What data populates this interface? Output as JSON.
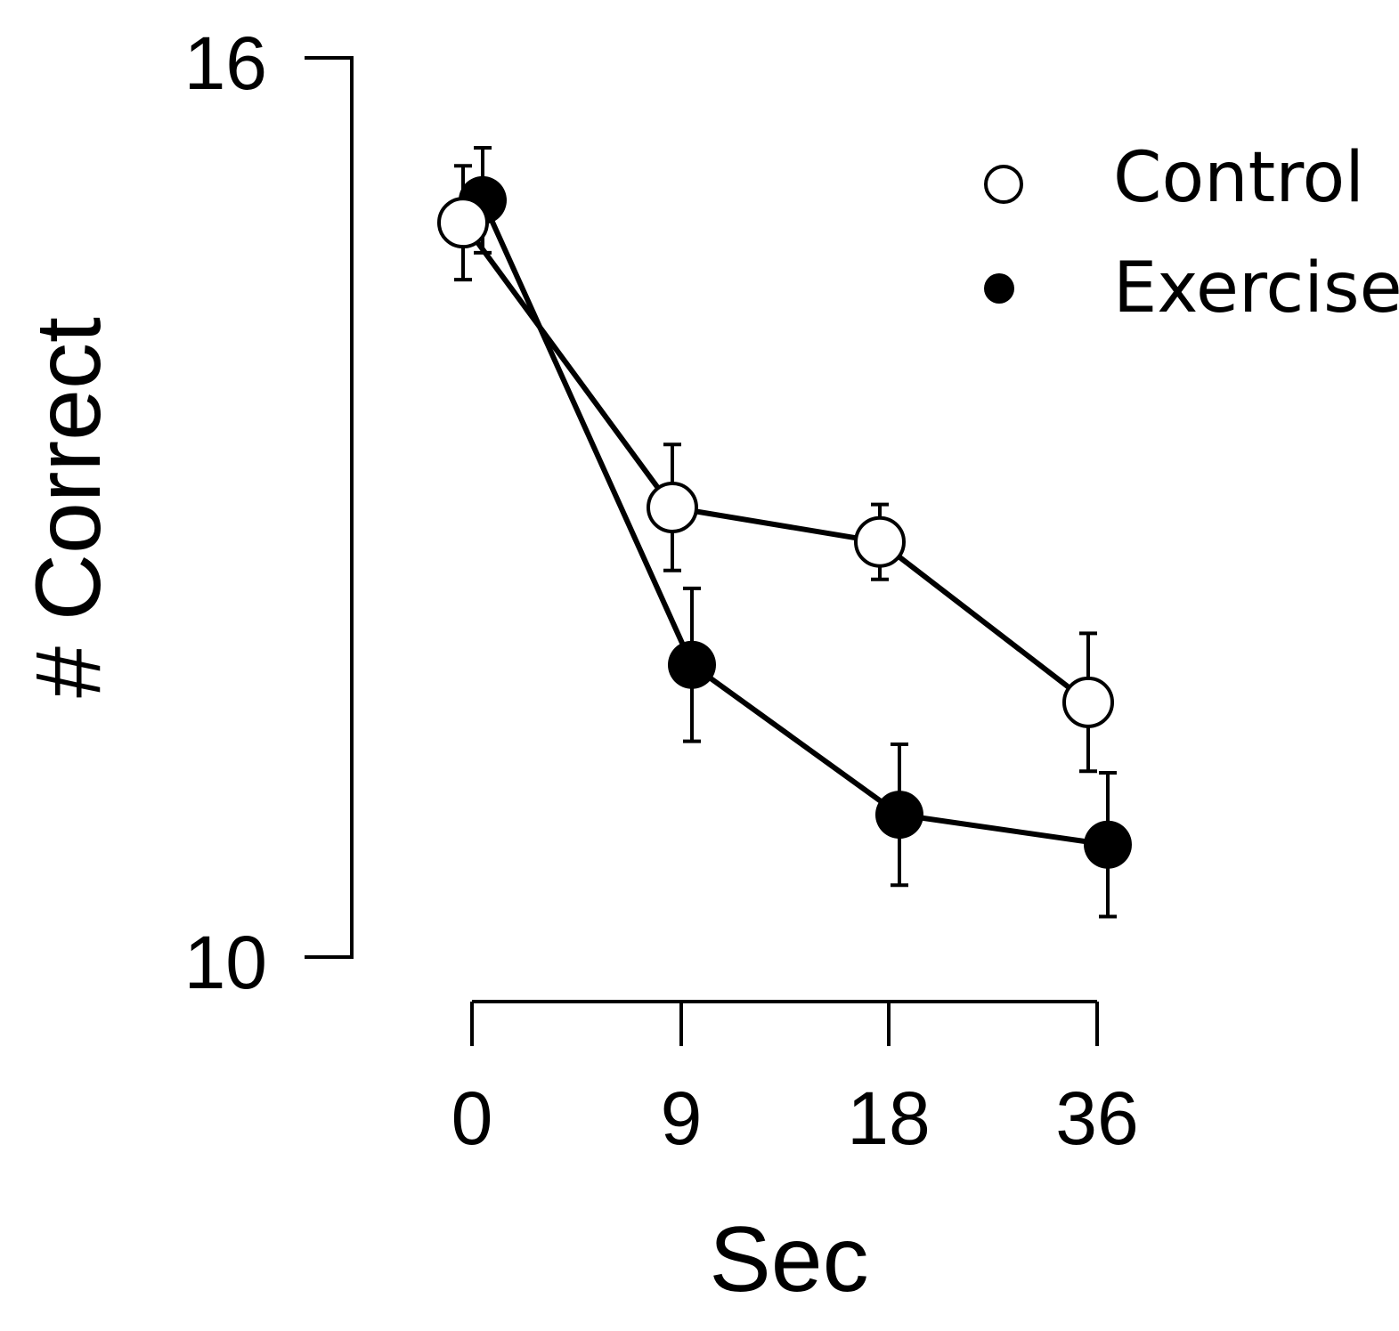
{
  "chart_data": {
    "type": "line",
    "title": "",
    "xlabel": "Sec",
    "ylabel": "# Correct",
    "categories": [
      "0",
      "9",
      "18",
      "36"
    ],
    "ylim": [
      10,
      16
    ],
    "y_ticks": [
      "16",
      "10"
    ],
    "legend_position": "top-right",
    "series": [
      {
        "name": "Control",
        "marker": "open-circle",
        "values": [
          14.9,
          13.0,
          12.77,
          11.7
        ],
        "errors": [
          0.38,
          0.42,
          0.25,
          0.46
        ]
      },
      {
        "name": "Exercise",
        "marker": "filled-circle",
        "values": [
          15.05,
          11.95,
          10.95,
          10.75
        ],
        "errors": [
          0.35,
          0.51,
          0.47,
          0.48
        ]
      }
    ],
    "colors": {
      "line": "#000000",
      "open_fill": "#ffffff",
      "filled_fill": "#000000"
    }
  }
}
